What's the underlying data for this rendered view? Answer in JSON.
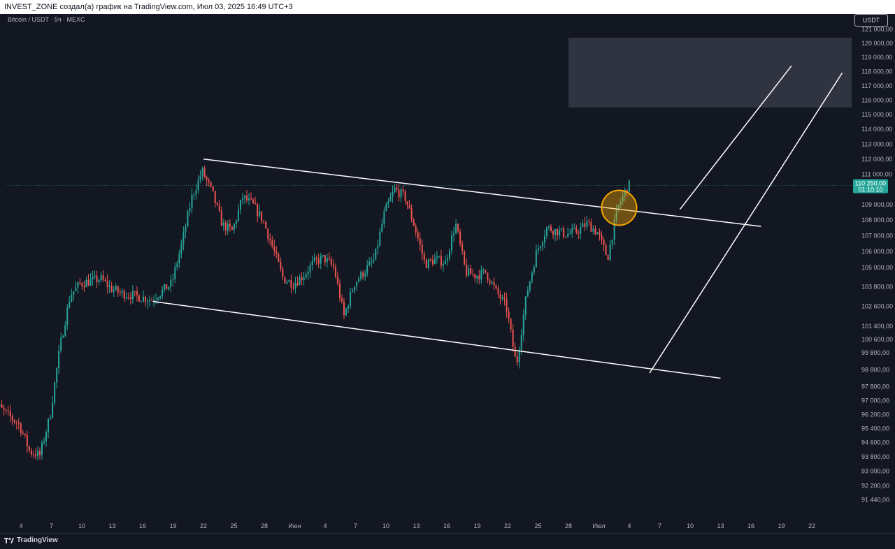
{
  "header": {
    "title": "INVEST_ZONE создал(а) график на TradingView.com, Июл 03, 2025 16:49 UTC+3"
  },
  "chart": {
    "symbol": "Bitcoin / USDT · 5ч · MEXC",
    "currency": "USDT",
    "brand": "TradingView"
  },
  "colors": {
    "background": "#131722",
    "up": "#26a69a",
    "down": "#ef5350",
    "axis_text": "#b2b5be",
    "price_tag": "#26a69a",
    "highlight_circle": "#f7a600",
    "target_zone": "#363a45"
  },
  "chart_data": {
    "type": "candlestick",
    "symbol": "Bitcoin / USDT",
    "timeframe": "5ч",
    "exchange": "MEXC",
    "currency": "USDT",
    "y_scale": "log",
    "ylim": [
      91000,
      121200
    ],
    "last_price": "110 250,00",
    "countdown": "01:10:10",
    "y_ticks": [
      "121 000,00",
      "120 000,00",
      "119 000,00",
      "118 000,00",
      "117 000,00",
      "116 000,00",
      "115 000,00",
      "114 000,00",
      "113 000,00",
      "112 000,00",
      "111 000,00",
      "109 000,00",
      "108 000,00",
      "107 000,00",
      "106 000,00",
      "105 000,00",
      "103 800,00",
      "102 600,00",
      "101 400,00",
      "100 600,00",
      "99 800,00",
      "98 800,00",
      "97 800,00",
      "97 000,00",
      "96 200,00",
      "95 400,00",
      "94 600,00",
      "93 800,00",
      "93 000,00",
      "92 200,00",
      "91 440,00"
    ],
    "x_ticks": [
      "4",
      "7",
      "10",
      "13",
      "16",
      "19",
      "22",
      "25",
      "28",
      "Июн",
      "4",
      "7",
      "10",
      "13",
      "16",
      "19",
      "22",
      "25",
      "28",
      "Июл",
      "4",
      "7",
      "10",
      "13",
      "16",
      "19",
      "22"
    ],
    "anchors": [
      {
        "date": "2025-05-01",
        "price": 97000
      },
      {
        "date": "2025-05-02",
        "price": 96600
      },
      {
        "date": "2025-05-04",
        "price": 95600
      },
      {
        "date": "2025-05-05",
        "price": 94100
      },
      {
        "date": "2025-05-06",
        "price": 93900
      },
      {
        "date": "2025-05-07",
        "price": 96100
      },
      {
        "date": "2025-05-08",
        "price": 100200
      },
      {
        "date": "2025-05-09",
        "price": 103300
      },
      {
        "date": "2025-05-10",
        "price": 104000
      },
      {
        "date": "2025-05-12",
        "price": 104300
      },
      {
        "date": "2025-05-13",
        "price": 103700
      },
      {
        "date": "2025-05-14",
        "price": 103400
      },
      {
        "date": "2025-05-15",
        "price": 103300
      },
      {
        "date": "2025-05-17",
        "price": 103000
      },
      {
        "date": "2025-05-19",
        "price": 104000
      },
      {
        "date": "2025-05-20",
        "price": 106500
      },
      {
        "date": "2025-05-21",
        "price": 109500
      },
      {
        "date": "2025-05-22",
        "price": 111200
      },
      {
        "date": "2025-05-23",
        "price": 109800
      },
      {
        "date": "2025-05-24",
        "price": 107700
      },
      {
        "date": "2025-05-25",
        "price": 107300
      },
      {
        "date": "2025-05-26",
        "price": 109500
      },
      {
        "date": "2025-05-27",
        "price": 109000
      },
      {
        "date": "2025-05-28",
        "price": 108000
      },
      {
        "date": "2025-05-29",
        "price": 106200
      },
      {
        "date": "2025-05-30",
        "price": 104300
      },
      {
        "date": "2025-05-31",
        "price": 104000
      },
      {
        "date": "2025-06-01",
        "price": 104500
      },
      {
        "date": "2025-06-02",
        "price": 105300
      },
      {
        "date": "2025-06-03",
        "price": 105600
      },
      {
        "date": "2025-06-04",
        "price": 105000
      },
      {
        "date": "2025-06-05",
        "price": 102000
      },
      {
        "date": "2025-06-06",
        "price": 104000
      },
      {
        "date": "2025-06-08",
        "price": 105500
      },
      {
        "date": "2025-06-09",
        "price": 108500
      },
      {
        "date": "2025-06-10",
        "price": 110000
      },
      {
        "date": "2025-06-11",
        "price": 109500
      },
      {
        "date": "2025-06-12",
        "price": 107500
      },
      {
        "date": "2025-06-13",
        "price": 105200
      },
      {
        "date": "2025-06-14",
        "price": 105500
      },
      {
        "date": "2025-06-15",
        "price": 105300
      },
      {
        "date": "2025-06-16",
        "price": 107800
      },
      {
        "date": "2025-06-17",
        "price": 104700
      },
      {
        "date": "2025-06-18",
        "price": 104500
      },
      {
        "date": "2025-06-19",
        "price": 104700
      },
      {
        "date": "2025-06-20",
        "price": 103500
      },
      {
        "date": "2025-06-21",
        "price": 102600
      },
      {
        "date": "2025-06-22",
        "price": 99000
      },
      {
        "date": "2025-06-23",
        "price": 103300
      },
      {
        "date": "2025-06-24",
        "price": 106000
      },
      {
        "date": "2025-06-25",
        "price": 107500
      },
      {
        "date": "2025-06-26",
        "price": 107300
      },
      {
        "date": "2025-06-27",
        "price": 107100
      },
      {
        "date": "2025-06-28",
        "price": 107300
      },
      {
        "date": "2025-06-29",
        "price": 107800
      },
      {
        "date": "2025-06-30",
        "price": 107200
      },
      {
        "date": "2025-07-01",
        "price": 105600
      },
      {
        "date": "2025-07-02",
        "price": 108800
      },
      {
        "date": "2025-07-03",
        "price": 110250
      }
    ],
    "drawings": {
      "channel_upper": [
        {
          "date": "2025-05-22",
          "price": 112000
        },
        {
          "date": "2025-07-16",
          "price": 107600
        }
      ],
      "channel_lower": [
        {
          "date": "2025-05-17",
          "price": 102900
        },
        {
          "date": "2025-07-12",
          "price": 98300
        }
      ],
      "projection_upper": [
        {
          "date": "2025-07-08",
          "price": 108700
        },
        {
          "date": "2025-07-19",
          "price": 118400
        }
      ],
      "projection_lower": [
        {
          "date": "2025-07-05",
          "price": 98600
        },
        {
          "date": "2025-07-24",
          "price": 117900
        }
      ],
      "target_zone": {
        "from_date": "2025-06-27",
        "to_date": "2025-07-27",
        "price_from": 115500,
        "price_to": 120400
      },
      "breakout_circle": {
        "date": "2025-07-02",
        "price": 108800
      }
    }
  }
}
